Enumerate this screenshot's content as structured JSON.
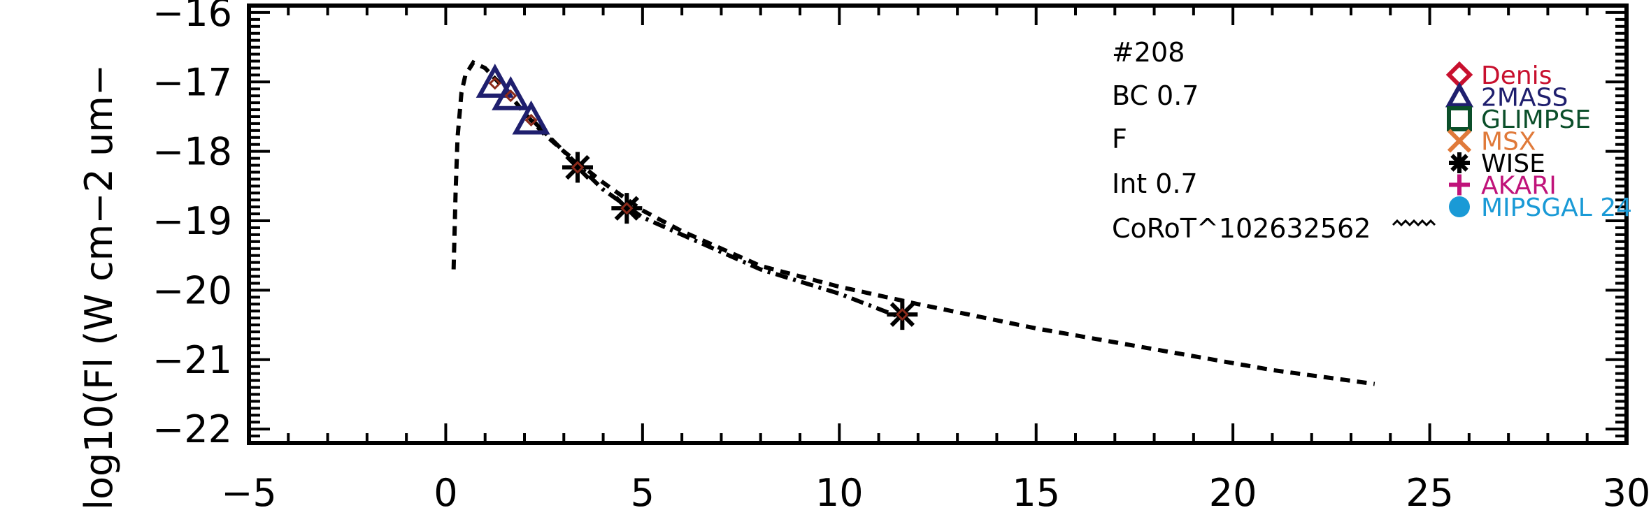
{
  "chart_data": {
    "type": "scatter",
    "title": "",
    "xlabel": "",
    "ylabel": "log10(Fl (W cm−2 um−",
    "xlim": [
      -5,
      30
    ],
    "ylim": [
      -22.2,
      -15.9
    ],
    "x_ticks": [
      "−5",
      "0",
      "5",
      "10",
      "15",
      "20",
      "25",
      "30"
    ],
    "y_ticks": [
      "−16",
      "−17",
      "−18",
      "−19",
      "−20",
      "−21",
      "−22"
    ],
    "x_tick_values": [
      -5,
      0,
      5,
      10,
      15,
      20,
      25,
      30
    ],
    "y_tick_values": [
      -16,
      -17,
      -18,
      -19,
      -20,
      -21,
      -22
    ],
    "annotations": [
      "#208",
      "BC 0.7",
      "F",
      "Int 0.7",
      "CoRoT^102632562"
    ],
    "legend": [
      {
        "label": "Denis",
        "marker": "diamond",
        "color": "#c8102e"
      },
      {
        "label": "2MASS",
        "marker": "triangle",
        "color": "#1f1f6e"
      },
      {
        "label": "GLIMPSE",
        "marker": "square",
        "color": "#0b4f2a"
      },
      {
        "label": "MSX",
        "marker": "x",
        "color": "#e07a3a"
      },
      {
        "label": "WISE",
        "marker": "asterisk",
        "color": "#000000"
      },
      {
        "label": "AKARI",
        "marker": "plus",
        "color": "#c0137a"
      },
      {
        "label": "MIPSGAL 24",
        "marker": "circle",
        "color": "#1a9ad6"
      }
    ],
    "legend_position": "top-right",
    "series": [
      {
        "marker": "triangle",
        "color": "#1f1f6e",
        "x": [
          1.25,
          1.65,
          2.17
        ],
        "y": [
          -17.02,
          -17.2,
          -17.55
        ]
      },
      {
        "marker": "asterisk",
        "color": "#000000",
        "x": [
          3.35,
          4.6,
          11.6
        ],
        "y": [
          -18.23,
          -18.82,
          -20.35
        ]
      },
      {
        "style": "dashed",
        "color": "#000000",
        "x": [
          0.2,
          0.25,
          0.3,
          0.4,
          0.5,
          0.7,
          1.0,
          1.5,
          2.0,
          2.5,
          3.0,
          4.0,
          5.0,
          6.0,
          8.0,
          10.0,
          12.0,
          15.0,
          18.0,
          21.0,
          23.6
        ],
        "y": [
          -19.7,
          -18.6,
          -17.8,
          -17.15,
          -16.9,
          -16.72,
          -16.8,
          -17.1,
          -17.45,
          -17.75,
          -18.0,
          -18.45,
          -18.85,
          -19.15,
          -19.65,
          -19.95,
          -20.2,
          -20.55,
          -20.85,
          -21.15,
          -21.35
        ]
      },
      {
        "style": "dash-dot",
        "color": "#000000",
        "x": [
          2.2,
          3.0,
          4.0,
          5.0,
          6.0,
          8.0,
          10.0,
          11.6
        ],
        "y": [
          -17.55,
          -18.0,
          -18.55,
          -18.95,
          -19.2,
          -19.7,
          -20.05,
          -20.4
        ]
      },
      {
        "marker": "diamond-small",
        "color": "#8b2a1a",
        "x": [
          1.25,
          1.65,
          2.17,
          3.35,
          4.6,
          11.6
        ],
        "y": [
          -17.02,
          -17.2,
          -17.55,
          -18.23,
          -18.82,
          -20.35
        ]
      }
    ]
  }
}
